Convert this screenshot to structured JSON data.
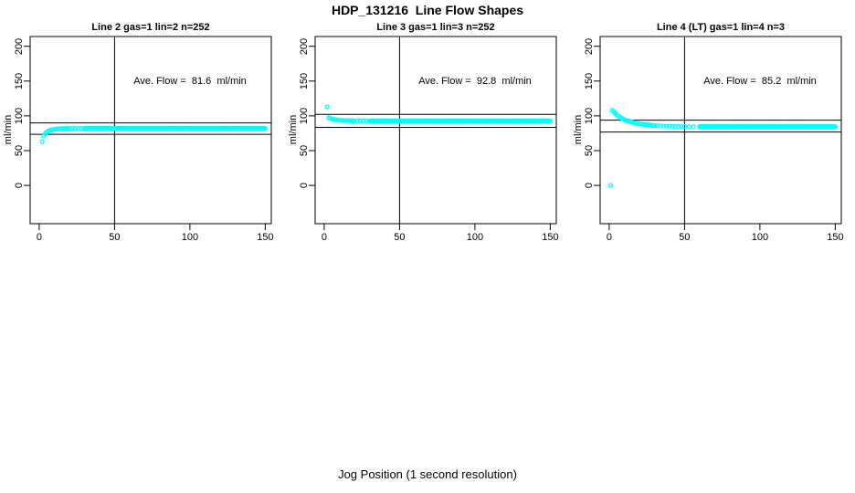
{
  "title": "HDP_131216  Line Flow Shapes",
  "xlabel": "Jog Position (1 second resolution)",
  "colors": {
    "point": "#00FFFF",
    "axis": "#000000",
    "background": "#FFFFFF"
  },
  "chart_data": [
    {
      "type": "scatter",
      "title": "Line 2 gas=1 lin=2 n=252",
      "annotation": "Ave. Flow =  81.6  ml/min",
      "ave_flow_ml_min": 81.6,
      "ylabel": "ml/min",
      "xticks": [
        0,
        50,
        100,
        150
      ],
      "yticks": [
        0,
        50,
        100,
        150,
        200
      ],
      "xlim": [
        -6,
        154
      ],
      "ylim": [
        -55,
        214
      ],
      "vline_x": 50,
      "hlines_y": [
        89.8,
        73.4
      ],
      "annotation_at": {
        "x": 100,
        "y": 150
      },
      "points": [
        [
          2,
          63
        ],
        [
          3,
          71
        ],
        [
          4,
          74.5
        ],
        [
          5,
          76.5
        ],
        [
          6,
          78
        ],
        [
          7,
          79
        ],
        [
          8,
          79.8
        ],
        [
          9,
          80.3
        ],
        [
          10,
          80.7
        ],
        [
          11,
          81
        ],
        [
          12,
          81.2
        ],
        [
          13,
          81.4
        ],
        [
          14,
          81.5
        ],
        [
          15,
          81.6
        ],
        [
          16,
          81.7
        ],
        [
          17,
          81.8
        ],
        [
          18,
          81.8
        ],
        [
          19,
          81.9
        ],
        [
          20,
          81.9
        ],
        [
          22,
          82
        ],
        [
          24,
          82
        ],
        [
          26,
          82
        ],
        [
          28,
          82
        ],
        [
          30,
          82
        ]
      ],
      "band": {
        "x_start": 30.6,
        "x_end": 150,
        "x_step": 0.6,
        "y": 82,
        "jitter": 0.45
      }
    },
    {
      "type": "scatter",
      "title": "Line 3 gas=1 lin=3 n=252",
      "annotation": "Ave. Flow =  92.8  ml/min",
      "ave_flow_ml_min": 92.8,
      "ylabel": "ml/min",
      "xticks": [
        0,
        50,
        100,
        150
      ],
      "yticks": [
        0,
        50,
        100,
        150,
        200
      ],
      "xlim": [
        -6,
        154
      ],
      "ylim": [
        -55,
        214
      ],
      "vline_x": 50,
      "hlines_y": [
        102.1,
        83.5
      ],
      "annotation_at": {
        "x": 100,
        "y": 150
      },
      "points": [
        [
          2,
          113
        ],
        [
          3,
          97.5
        ],
        [
          4,
          96.5
        ],
        [
          5,
          95.8
        ],
        [
          6,
          95.2
        ],
        [
          7,
          94.7
        ],
        [
          8,
          94.3
        ],
        [
          9,
          94
        ],
        [
          10,
          93.8
        ],
        [
          11,
          93.6
        ],
        [
          12,
          93.4
        ],
        [
          13,
          93.3
        ],
        [
          14,
          93.2
        ],
        [
          15,
          93.1
        ],
        [
          16,
          93.1
        ],
        [
          17,
          93
        ],
        [
          18,
          93
        ],
        [
          19,
          92.9
        ],
        [
          20,
          92.9
        ],
        [
          22,
          92.9
        ],
        [
          24,
          92.8
        ],
        [
          26,
          92.8
        ],
        [
          28,
          92.8
        ],
        [
          30,
          92.8
        ]
      ],
      "band": {
        "x_start": 30.6,
        "x_end": 150,
        "x_step": 0.6,
        "y": 92.8,
        "jitter": 0.45
      }
    },
    {
      "type": "scatter",
      "title": "Line 4 (LT) gas=1 lin=4 n=3",
      "annotation": "Ave. Flow =  85.2  ml/min",
      "ave_flow_ml_min": 85.2,
      "ylabel": "ml/min",
      "xticks": [
        0,
        50,
        100,
        150
      ],
      "yticks": [
        0,
        50,
        100,
        150,
        200
      ],
      "xlim": [
        -6,
        154
      ],
      "ylim": [
        -55,
        214
      ],
      "vline_x": 50,
      "hlines_y": [
        93.7,
        76.7
      ],
      "annotation_at": {
        "x": 100,
        "y": 150
      },
      "points": [
        [
          1,
          0
        ],
        [
          2,
          108
        ],
        [
          3,
          106
        ],
        [
          4,
          103.5
        ],
        [
          5,
          101.5
        ],
        [
          6,
          99.7
        ],
        [
          7,
          98.2
        ],
        [
          8,
          96.8
        ],
        [
          9,
          95.6
        ],
        [
          10,
          94.6
        ],
        [
          11,
          93.7
        ],
        [
          12,
          92.9
        ],
        [
          13,
          92.2
        ],
        [
          14,
          91.5
        ],
        [
          15,
          90.9
        ],
        [
          16,
          90.4
        ],
        [
          17,
          89.9
        ],
        [
          18,
          89.4
        ],
        [
          19,
          89
        ],
        [
          20,
          88.6
        ],
        [
          21,
          88.3
        ],
        [
          22,
          88
        ],
        [
          23,
          87.7
        ],
        [
          24,
          87.4
        ],
        [
          25,
          87.1
        ],
        [
          26,
          86.9
        ],
        [
          27,
          86.7
        ],
        [
          28,
          86.5
        ],
        [
          29,
          86.3
        ],
        [
          30,
          86.1
        ],
        [
          32,
          85.8
        ],
        [
          34,
          85.6
        ],
        [
          36,
          85.4
        ],
        [
          38,
          85.2
        ],
        [
          40,
          85.1
        ],
        [
          42,
          85
        ],
        [
          44,
          84.9
        ],
        [
          46,
          84.8
        ],
        [
          48,
          84.8
        ],
        [
          50,
          84.7
        ],
        [
          53,
          84.6
        ],
        [
          56,
          84.6
        ],
        [
          60,
          84.5
        ]
      ],
      "band": {
        "x_start": 60.6,
        "x_end": 150,
        "x_step": 0.6,
        "y": 84.5,
        "jitter": 0.5
      }
    }
  ]
}
